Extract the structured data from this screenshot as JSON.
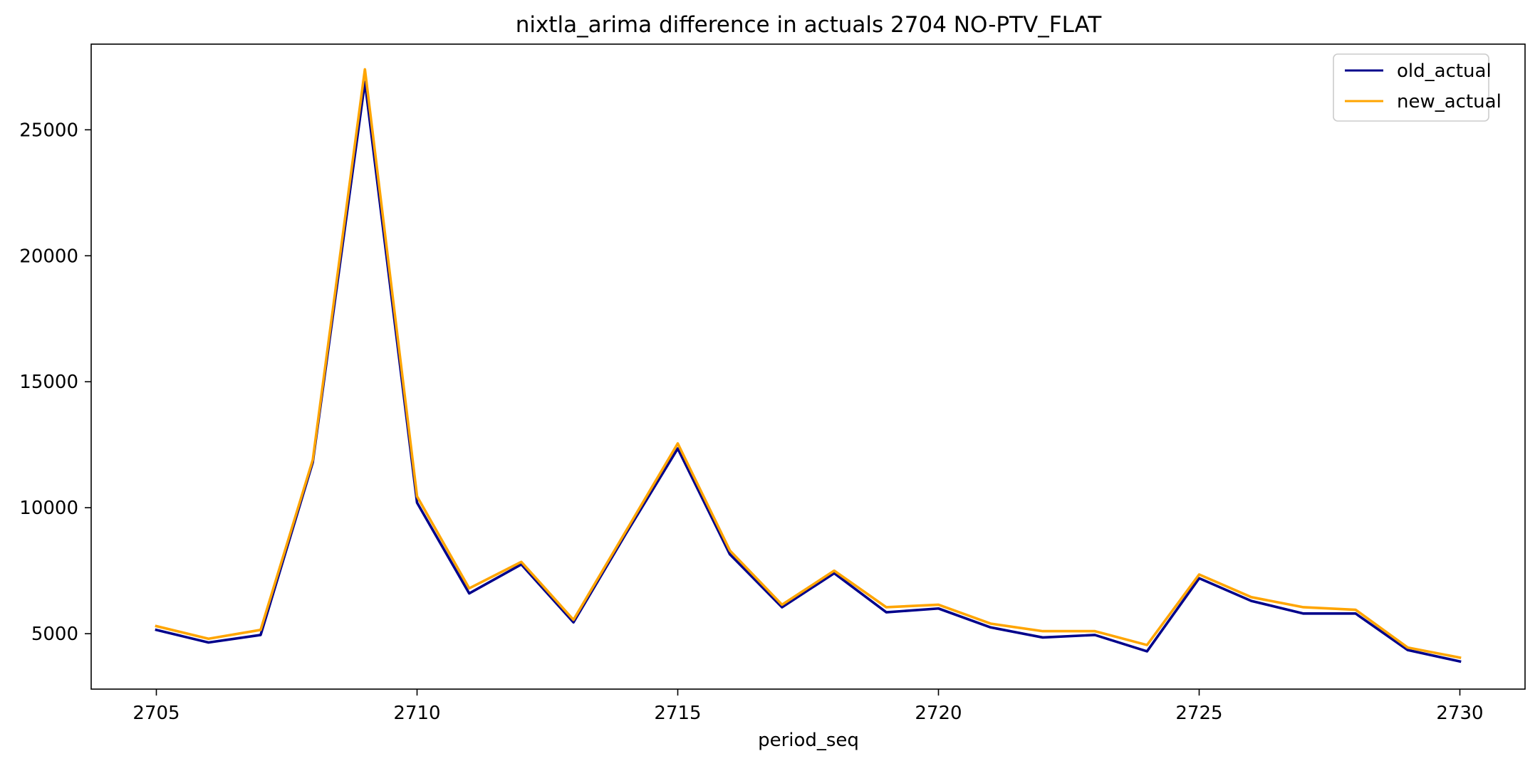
{
  "chart_data": {
    "type": "line",
    "title": "nixtla_arima difference in actuals 2704 NO-PTV_FLAT",
    "xlabel": "period_seq",
    "ylabel": "",
    "xlim": [
      2703.75,
      2731.25
    ],
    "ylim": [
      2800,
      28400
    ],
    "xticks": [
      2705,
      2710,
      2715,
      2720,
      2725,
      2730
    ],
    "yticks": [
      5000,
      10000,
      15000,
      20000,
      25000
    ],
    "grid": false,
    "legend_position": "top-right",
    "x": [
      2705,
      2706,
      2707,
      2708,
      2709,
      2710,
      2711,
      2712,
      2713,
      2714,
      2715,
      2716,
      2717,
      2718,
      2719,
      2720,
      2721,
      2722,
      2723,
      2724,
      2725,
      2726,
      2727,
      2728,
      2729,
      2730
    ],
    "series": [
      {
        "name": "old_actual",
        "color": "#00008b",
        "values": [
          5150,
          4650,
          4950,
          11800,
          26900,
          10200,
          6600,
          7750,
          5450,
          8950,
          12350,
          8150,
          6050,
          7400,
          5850,
          6000,
          5250,
          4850,
          4950,
          4300,
          7200,
          6300,
          5800,
          5800,
          4350,
          3900
        ]
      },
      {
        "name": "new_actual",
        "color": "#ffa500",
        "values": [
          5300,
          4800,
          5150,
          11900,
          27400,
          10450,
          6800,
          7850,
          5550,
          9050,
          12550,
          8300,
          6150,
          7500,
          6050,
          6150,
          5400,
          5100,
          5100,
          4550,
          7350,
          6450,
          6050,
          5950,
          4450,
          4050
        ]
      }
    ]
  }
}
